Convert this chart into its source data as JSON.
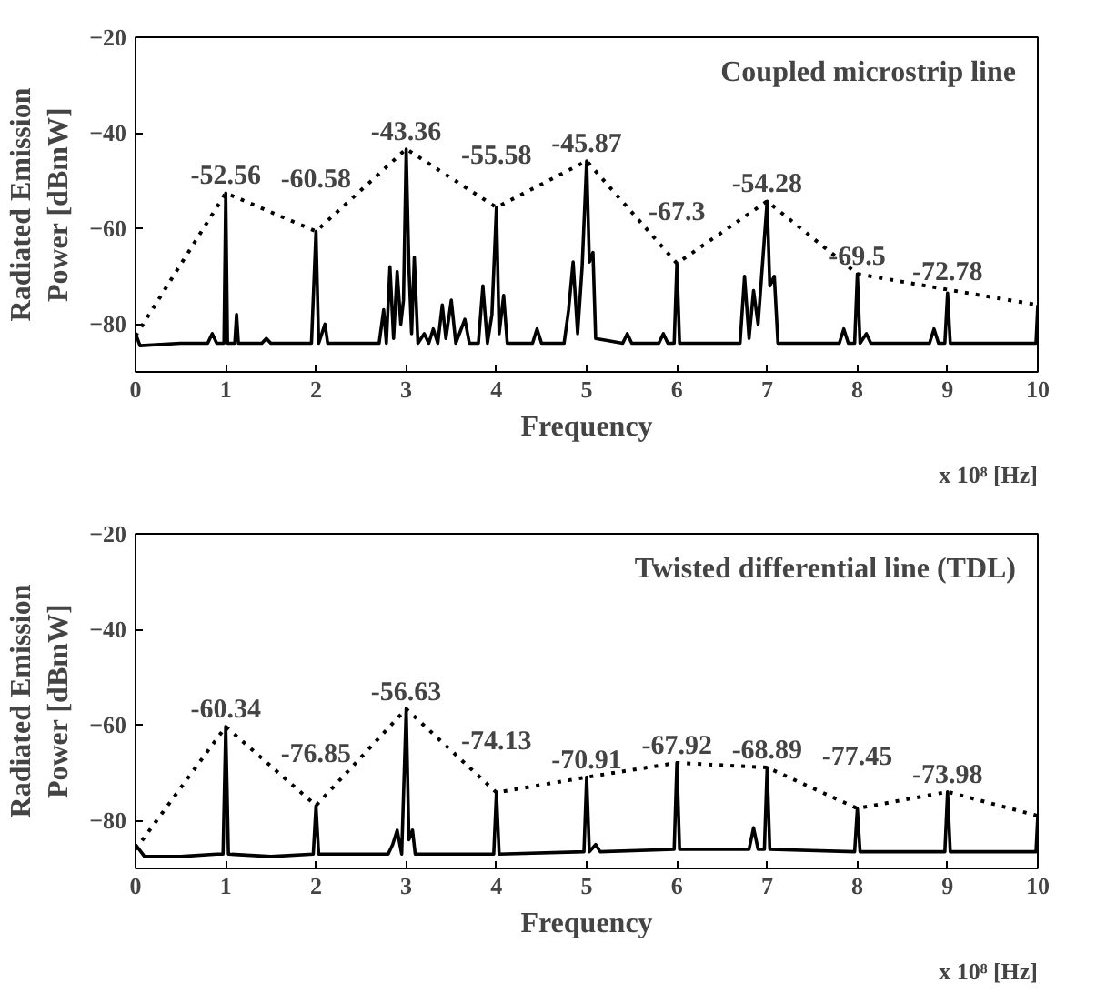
{
  "chart_data": [
    {
      "type": "line",
      "title": "Coupled microstrip line",
      "xlabel": "Frequency",
      "ylabel": "Radiated Emission\nPower [dBmW]",
      "annotations": [
        "x 10⁸ [Hz]"
      ],
      "xlim": [
        0,
        10
      ],
      "ylim": [
        -90,
        -20
      ],
      "xticks": [
        0,
        1,
        2,
        3,
        4,
        5,
        6,
        7,
        8,
        9,
        10
      ],
      "yticks": [
        -20,
        -40,
        -60,
        -80
      ],
      "grid": false,
      "marker": "none",
      "series": [
        {
          "color": "#000000",
          "line_style": "solid",
          "x": [
            0,
            0.05,
            0.5,
            0.8,
            0.85,
            0.9,
            0.98,
            1.0,
            1.02,
            1.1,
            1.12,
            1.14,
            1.4,
            1.45,
            1.5,
            1.95,
            2.0,
            2.03,
            2.1,
            2.13,
            2.7,
            2.75,
            2.78,
            2.82,
            2.86,
            2.9,
            2.94,
            2.97,
            3.0,
            3.03,
            3.06,
            3.09,
            3.13,
            3.2,
            3.25,
            3.3,
            3.35,
            3.4,
            3.44,
            3.5,
            3.55,
            3.65,
            3.7,
            3.8,
            3.85,
            3.9,
            3.95,
            4.0,
            4.03,
            4.08,
            4.12,
            4.4,
            4.45,
            4.5,
            4.75,
            4.8,
            4.85,
            4.9,
            4.95,
            5.0,
            5.03,
            5.07,
            5.1,
            5.4,
            5.45,
            5.5,
            5.8,
            5.85,
            5.9,
            5.97,
            6.0,
            6.03,
            6.7,
            6.75,
            6.8,
            6.85,
            6.9,
            7.0,
            7.03,
            7.08,
            7.12,
            7.8,
            7.85,
            7.9,
            7.97,
            8.0,
            8.03,
            8.1,
            8.15,
            8.8,
            8.85,
            8.9,
            8.97,
            9.0,
            9.03,
            9.5,
            9.98,
            10
          ],
          "values": [
            -82,
            -84.5,
            -84,
            -84,
            -82,
            -84,
            -84,
            -52.6,
            -84,
            -84,
            -78,
            -84,
            -84,
            -83,
            -84,
            -84,
            -60.6,
            -84,
            -80,
            -84,
            -84,
            -77,
            -84,
            -68,
            -83,
            -69,
            -80,
            -75,
            -43.4,
            -68,
            -82,
            -66,
            -84,
            -82,
            -84,
            -81,
            -84,
            -76,
            -83,
            -75,
            -84,
            -79,
            -84,
            -84,
            -72,
            -84,
            -78,
            -55.6,
            -82,
            -74,
            -84,
            -84,
            -81,
            -84,
            -84,
            -77,
            -67,
            -82,
            -68,
            -45.9,
            -67,
            -65,
            -83,
            -84,
            -82,
            -84,
            -84,
            -82,
            -84,
            -84,
            -67.3,
            -84,
            -84,
            -70,
            -83,
            -73,
            -80,
            -54.3,
            -72,
            -70,
            -84,
            -84,
            -81,
            -84,
            -84,
            -69.5,
            -84,
            -82,
            -84,
            -84,
            -81,
            -84,
            -84,
            -73.5,
            -84,
            -84,
            -84,
            -76
          ]
        },
        {
          "color": "#000000",
          "line_style": "dotted",
          "x": [
            0,
            1,
            2,
            3,
            4,
            5,
            6,
            7,
            8,
            9,
            10
          ],
          "values": [
            -82.5,
            -52.56,
            -60.58,
            -43.36,
            -55.58,
            -45.87,
            -67.3,
            -54.28,
            -69.5,
            -72.78,
            -76
          ],
          "value_labels": [
            null,
            "-52.56",
            "-60.58",
            "-43.36",
            "-55.58",
            "-45.87",
            "-67.3",
            "-54.28",
            "-69.5",
            "-72.78",
            null
          ]
        }
      ]
    },
    {
      "type": "line",
      "title": "Twisted differential line (TDL)",
      "xlabel": "Frequency",
      "ylabel": "Radiated Emission\nPower [dBmW]",
      "annotations": [
        "x 10⁸ [Hz]"
      ],
      "xlim": [
        0,
        10
      ],
      "ylim": [
        -90,
        -20
      ],
      "xticks": [
        0,
        1,
        2,
        3,
        4,
        5,
        6,
        7,
        8,
        9,
        10
      ],
      "yticks": [
        -20,
        -40,
        -60,
        -80
      ],
      "grid": false,
      "marker": "none",
      "series": [
        {
          "color": "#000000",
          "line_style": "solid",
          "x": [
            0,
            0.1,
            0.5,
            0.9,
            0.97,
            1.0,
            1.03,
            1.5,
            1.97,
            2.0,
            2.03,
            2.8,
            2.85,
            2.9,
            2.95,
            3.0,
            3.03,
            3.07,
            3.1,
            3.97,
            4.0,
            4.03,
            4.97,
            5.0,
            5.03,
            5.1,
            5.15,
            5.97,
            6.0,
            6.03,
            6.8,
            6.85,
            6.9,
            6.97,
            7.0,
            7.03,
            7.97,
            8.0,
            8.03,
            8.97,
            9.0,
            9.03,
            9.98,
            10
          ],
          "values": [
            -85,
            -87.5,
            -87.5,
            -87,
            -87,
            -60.3,
            -87,
            -87.5,
            -87,
            -76.9,
            -87,
            -87,
            -85,
            -82,
            -87,
            -56.6,
            -84,
            -82,
            -87,
            -87,
            -74.1,
            -87,
            -86.5,
            -70.9,
            -86.5,
            -85,
            -86.5,
            -86,
            -67.9,
            -86,
            -86,
            -81.5,
            -86,
            -86,
            -68.9,
            -86,
            -86.5,
            -77.5,
            -86.5,
            -86.5,
            -74,
            -86.5,
            -86.5,
            -79
          ]
        },
        {
          "color": "#000000",
          "line_style": "dotted",
          "x": [
            0,
            1,
            2,
            3,
            4,
            5,
            6,
            7,
            8,
            9,
            10
          ],
          "values": [
            -86,
            -60.34,
            -76.85,
            -56.63,
            -74.13,
            -70.91,
            -67.92,
            -68.89,
            -77.45,
            -73.98,
            -79
          ],
          "value_labels": [
            null,
            "-60.34",
            "-76.85",
            "-56.63",
            "-74.13",
            "-70.91",
            "-67.92",
            "-68.89",
            "-77.45",
            "-73.98",
            null
          ]
        }
      ]
    }
  ]
}
